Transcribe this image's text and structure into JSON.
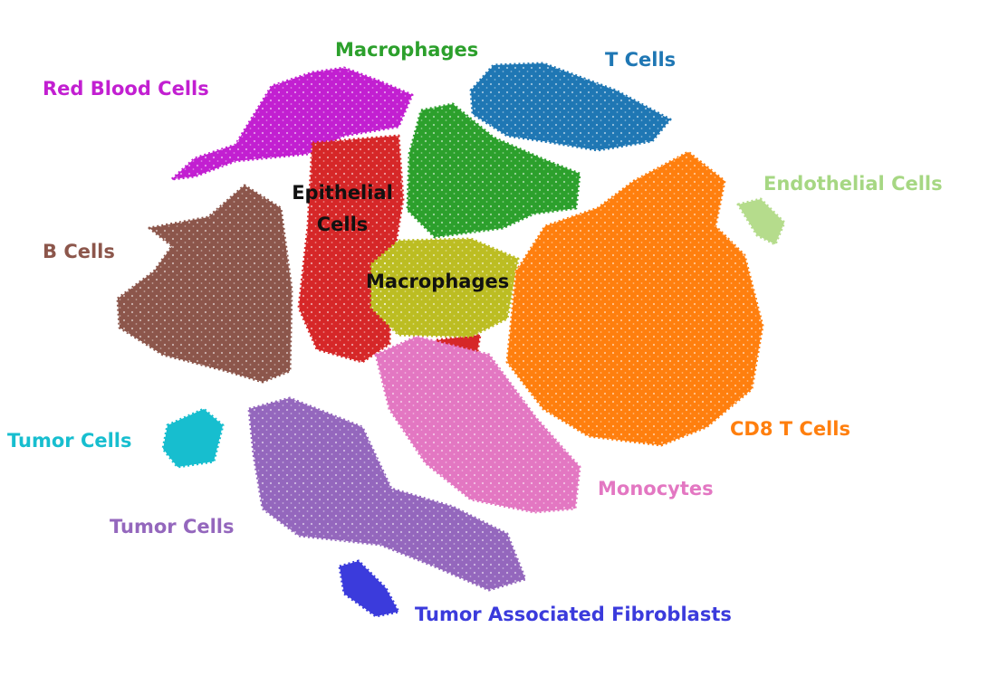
{
  "labels": [
    "Macrophages",
    "T Cells",
    "Red Blood Cells",
    "Epithelial Cells",
    "Endothelial Cells",
    "B Cells",
    "Macrophages",
    "CD8 T Cells",
    "Tumor Cells",
    "Monocytes",
    "Tumor Cells",
    "Tumor Associated Fibroblasts"
  ]
}
